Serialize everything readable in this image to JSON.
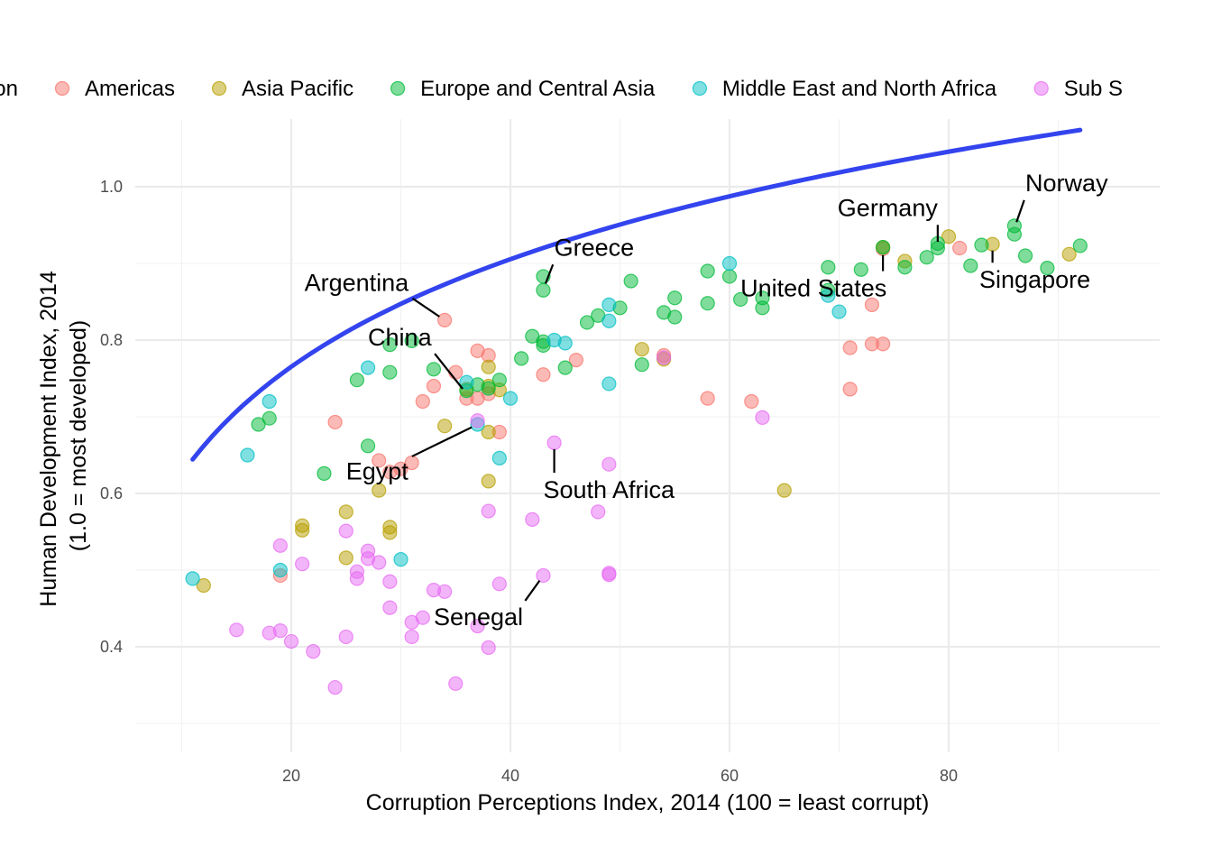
{
  "chart_data": {
    "type": "scatter",
    "xlabel": "Corruption Perceptions Index, 2014 (100 = least corrupt)",
    "ylabel": [
      "Human Development Index, 2014",
      "(1.0 = most developed)"
    ],
    "xlim": [
      6,
      99
    ],
    "ylim": [
      0.27,
      1.08
    ],
    "x_ticks": [
      20,
      40,
      60,
      80
    ],
    "y_ticks": [
      0.4,
      0.6,
      0.8,
      1.0
    ],
    "y_tick_labels": [
      "0.4",
      "0.6",
      "0.8",
      "1.0"
    ],
    "grid": true,
    "legend_position": "top",
    "legend": [
      {
        "name": "on",
        "color": "#F8766D",
        "visible_text_only": true
      },
      {
        "name": "Americas",
        "color": "#F8766D"
      },
      {
        "name": "Asia Pacific",
        "color": "#B79F00"
      },
      {
        "name": "Europe and Central Asia",
        "color": "#00BA38"
      },
      {
        "name": "Middle East and North Africa",
        "color": "#00BFC4"
      },
      {
        "name": "Sub S",
        "color": "#E76BF3"
      }
    ],
    "series": [
      {
        "key": "americas",
        "color": "#F8766D",
        "points": [
          [
            34,
            0.826
          ],
          [
            35,
            0.758
          ],
          [
            36,
            0.724
          ],
          [
            37,
            0.786
          ],
          [
            37,
            0.724
          ],
          [
            38,
            0.78
          ],
          [
            38,
            0.73
          ],
          [
            39,
            0.68
          ],
          [
            33,
            0.74
          ],
          [
            32,
            0.72
          ],
          [
            43,
            0.755
          ],
          [
            46,
            0.774
          ],
          [
            24,
            0.693
          ],
          [
            28,
            0.643
          ],
          [
            29,
            0.628
          ],
          [
            30,
            0.632
          ],
          [
            31,
            0.64
          ],
          [
            19,
            0.493
          ],
          [
            54,
            0.78
          ],
          [
            58,
            0.724
          ],
          [
            62,
            0.72
          ],
          [
            71,
            0.79
          ],
          [
            71,
            0.736
          ],
          [
            73,
            0.795
          ],
          [
            73,
            0.846
          ],
          [
            74,
            0.795
          ],
          [
            81,
            0.92
          ],
          [
            74,
            0.919
          ]
        ]
      },
      {
        "key": "asia",
        "color": "#B79F00",
        "points": [
          [
            12,
            0.48
          ],
          [
            21,
            0.558
          ],
          [
            21,
            0.552
          ],
          [
            25,
            0.576
          ],
          [
            25,
            0.516
          ],
          [
            28,
            0.604
          ],
          [
            29,
            0.556
          ],
          [
            29,
            0.549
          ],
          [
            34,
            0.688
          ],
          [
            36,
            0.736
          ],
          [
            38,
            0.765
          ],
          [
            38,
            0.68
          ],
          [
            38,
            0.616
          ],
          [
            38,
            0.74
          ],
          [
            39,
            0.735
          ],
          [
            52,
            0.788
          ],
          [
            54,
            0.775
          ],
          [
            65,
            0.604
          ],
          [
            74,
            0.921
          ],
          [
            76,
            0.903
          ],
          [
            80,
            0.935
          ],
          [
            84,
            0.925
          ],
          [
            91,
            0.912
          ]
        ]
      },
      {
        "key": "europe",
        "color": "#00BA38",
        "points": [
          [
            17,
            0.69
          ],
          [
            18,
            0.698
          ],
          [
            23,
            0.626
          ],
          [
            26,
            0.748
          ],
          [
            27,
            0.662
          ],
          [
            29,
            0.794
          ],
          [
            29,
            0.758
          ],
          [
            31,
            0.799
          ],
          [
            33,
            0.762
          ],
          [
            36,
            0.734
          ],
          [
            37,
            0.742
          ],
          [
            38,
            0.737
          ],
          [
            39,
            0.748
          ],
          [
            41,
            0.776
          ],
          [
            42,
            0.805
          ],
          [
            43,
            0.798
          ],
          [
            43,
            0.793
          ],
          [
            43,
            0.883
          ],
          [
            43,
            0.865
          ],
          [
            45,
            0.764
          ],
          [
            47,
            0.823
          ],
          [
            48,
            0.832
          ],
          [
            50,
            0.842
          ],
          [
            51,
            0.877
          ],
          [
            52,
            0.768
          ],
          [
            54,
            0.836
          ],
          [
            55,
            0.83
          ],
          [
            55,
            0.855
          ],
          [
            58,
            0.848
          ],
          [
            58,
            0.89
          ],
          [
            60,
            0.883
          ],
          [
            61,
            0.853
          ],
          [
            63,
            0.855
          ],
          [
            63,
            0.842
          ],
          [
            69,
            0.895
          ],
          [
            69,
            0.865
          ],
          [
            72,
            0.892
          ],
          [
            74,
            0.921
          ],
          [
            76,
            0.895
          ],
          [
            78,
            0.908
          ],
          [
            79,
            0.92
          ],
          [
            79,
            0.926
          ],
          [
            82,
            0.897
          ],
          [
            83,
            0.924
          ],
          [
            86,
            0.949
          ],
          [
            86,
            0.938
          ],
          [
            87,
            0.91
          ],
          [
            89,
            0.894
          ],
          [
            92,
            0.923
          ]
        ]
      },
      {
        "key": "mena",
        "color": "#00BFC4",
        "points": [
          [
            11,
            0.489
          ],
          [
            16,
            0.65
          ],
          [
            18,
            0.72
          ],
          [
            19,
            0.5
          ],
          [
            27,
            0.764
          ],
          [
            30,
            0.514
          ],
          [
            36,
            0.745
          ],
          [
            37,
            0.69
          ],
          [
            39,
            0.646
          ],
          [
            40,
            0.724
          ],
          [
            44,
            0.8
          ],
          [
            45,
            0.796
          ],
          [
            49,
            0.743
          ],
          [
            49,
            0.846
          ],
          [
            49,
            0.825
          ],
          [
            60,
            0.9
          ],
          [
            69,
            0.858
          ],
          [
            70,
            0.837
          ]
        ]
      },
      {
        "key": "ssa",
        "color": "#E76BF3",
        "points": [
          [
            15,
            0.422
          ],
          [
            18,
            0.418
          ],
          [
            19,
            0.532
          ],
          [
            19,
            0.421
          ],
          [
            20,
            0.407
          ],
          [
            21,
            0.508
          ],
          [
            22,
            0.394
          ],
          [
            24,
            0.347
          ],
          [
            25,
            0.551
          ],
          [
            25,
            0.413
          ],
          [
            26,
            0.498
          ],
          [
            26,
            0.489
          ],
          [
            27,
            0.525
          ],
          [
            27,
            0.515
          ],
          [
            28,
            0.51
          ],
          [
            29,
            0.485
          ],
          [
            29,
            0.451
          ],
          [
            31,
            0.432
          ],
          [
            31,
            0.413
          ],
          [
            32,
            0.438
          ],
          [
            33,
            0.474
          ],
          [
            34,
            0.472
          ],
          [
            35,
            0.352
          ],
          [
            37,
            0.695
          ],
          [
            37,
            0.427
          ],
          [
            38,
            0.577
          ],
          [
            38,
            0.399
          ],
          [
            39,
            0.482
          ],
          [
            42,
            0.566
          ],
          [
            43,
            0.493
          ],
          [
            44,
            0.666
          ],
          [
            48,
            0.576
          ],
          [
            49,
            0.638
          ],
          [
            49,
            0.496
          ],
          [
            49,
            0.494
          ],
          [
            54,
            0.777
          ],
          [
            63,
            0.699
          ]
        ]
      }
    ],
    "trend_line": {
      "label": "",
      "color": "#3344EE",
      "x_from": 11,
      "x_to": 92,
      "coeff_a": 0.2023,
      "coeff_b": 0.1592
    },
    "annotations": [
      {
        "text": "Norway",
        "point": [
          86,
          0.946
        ],
        "label_at": [
          87,
          0.994
        ],
        "anchor": "start"
      },
      {
        "text": "Germany",
        "point": [
          79,
          0.92
        ],
        "label_at": [
          79,
          0.962
        ],
        "anchor": "end"
      },
      {
        "text": "Greece",
        "point": [
          43,
          0.866
        ],
        "label_at": [
          44,
          0.91
        ],
        "anchor": "start"
      },
      {
        "text": "Singapore",
        "point": [
          84,
          0.925
        ],
        "label_at": [
          82.8,
          0.868
        ],
        "anchor": "start"
      },
      {
        "text": "United States",
        "point": [
          74,
          0.919
        ],
        "label_at": [
          61,
          0.857
        ],
        "anchor": "start"
      },
      {
        "text": "Argentina",
        "point": [
          34,
          0.826
        ],
        "label_at": [
          21.2,
          0.864
        ],
        "anchor": "start"
      },
      {
        "text": "China",
        "point": [
          36,
          0.73
        ],
        "label_at": [
          27,
          0.793
        ],
        "anchor": "start"
      },
      {
        "text": "Egypt",
        "point": [
          37,
          0.69
        ],
        "label_at": [
          25,
          0.618
        ],
        "anchor": "start"
      },
      {
        "text": "South Africa",
        "point": [
          44,
          0.666
        ],
        "label_at": [
          43,
          0.594
        ],
        "anchor": "start"
      },
      {
        "text": "Senegal",
        "point": [
          43,
          0.493
        ],
        "label_at": [
          33,
          0.428
        ],
        "anchor": "start"
      }
    ]
  }
}
